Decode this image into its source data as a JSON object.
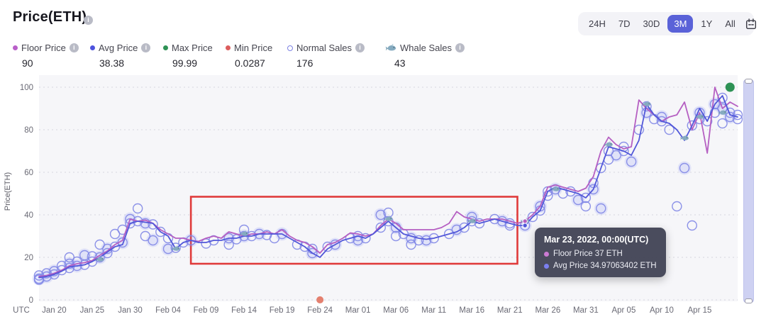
{
  "header": {
    "title": "Price(ETH)"
  },
  "ranges": {
    "options": [
      "24H",
      "7D",
      "30D",
      "3M",
      "1Y",
      "All"
    ],
    "active": "3M"
  },
  "icons": {
    "calendar": "calendar-icon",
    "info": "info-icon",
    "whale": "whale-icon"
  },
  "legend": [
    {
      "label": "Floor Price",
      "value": "90",
      "color": "#b95fc9",
      "type": "dot",
      "info": true
    },
    {
      "label": "Avg Price",
      "value": "38.38",
      "color": "#4d53dd",
      "type": "dot",
      "info": true
    },
    {
      "label": "Max Price",
      "value": "99.99",
      "color": "#2e9255",
      "type": "dot",
      "info": false
    },
    {
      "label": "Min Price",
      "value": "0.0287",
      "color": "#dc5d5d",
      "type": "dot",
      "info": false
    },
    {
      "label": "Normal Sales",
      "value": "176",
      "color": "#7d82e3",
      "type": "ring",
      "info": true
    },
    {
      "label": "Whale Sales",
      "value": "43",
      "color": "#86abc0",
      "type": "whale",
      "info": true
    }
  ],
  "tooltip": {
    "title": "Mar 23, 2022, 00:00(UTC)",
    "rows": [
      {
        "label": "Floor Price",
        "value": "37 ETH",
        "color": "#cb7ad2"
      },
      {
        "label": "Avg Price",
        "value": "34.97063402 ETH",
        "color": "#7b7ff0"
      }
    ]
  },
  "chart_data": {
    "type": "line",
    "title": "Price(ETH)",
    "ylabel": "Price(ETH)",
    "ylim": [
      0,
      100
    ],
    "y_ticks": [
      0,
      20,
      40,
      60,
      80,
      100
    ],
    "grid": "horizontal-dotted",
    "x_axis_prefix": "UTC",
    "x_ticks": [
      "Jan 20",
      "Jan 25",
      "Jan 30",
      "Feb 04",
      "Feb 09",
      "Feb 14",
      "Feb 19",
      "Feb 24",
      "Mar 01",
      "Mar 06",
      "Mar 11",
      "Mar 16",
      "Mar 21",
      "Mar 26",
      "Mar 31",
      "Apr 05",
      "Apr 10",
      "Apr 15"
    ],
    "dates": [
      "Jan 18",
      "Jan 19",
      "Jan 20",
      "Jan 21",
      "Jan 22",
      "Jan 23",
      "Jan 24",
      "Jan 25",
      "Jan 26",
      "Jan 27",
      "Jan 28",
      "Jan 29",
      "Jan 30",
      "Jan 31",
      "Feb 01",
      "Feb 02",
      "Feb 03",
      "Feb 04",
      "Feb 05",
      "Feb 06",
      "Feb 07",
      "Feb 08",
      "Feb 09",
      "Feb 10",
      "Feb 11",
      "Feb 12",
      "Feb 13",
      "Feb 14",
      "Feb 15",
      "Feb 16",
      "Feb 17",
      "Feb 18",
      "Feb 19",
      "Feb 20",
      "Feb 21",
      "Feb 22",
      "Feb 23",
      "Feb 24",
      "Feb 25",
      "Feb 26",
      "Feb 27",
      "Feb 28",
      "Mar 01",
      "Mar 02",
      "Mar 03",
      "Mar 04",
      "Mar 05",
      "Mar 06",
      "Mar 07",
      "Mar 08",
      "Mar 09",
      "Mar 10",
      "Mar 11",
      "Mar 12",
      "Mar 13",
      "Mar 14",
      "Mar 15",
      "Mar 16",
      "Mar 17",
      "Mar 18",
      "Mar 19",
      "Mar 20",
      "Mar 21",
      "Mar 22",
      "Mar 23",
      "Mar 24",
      "Mar 25",
      "Mar 26",
      "Mar 27",
      "Mar 28",
      "Mar 29",
      "Mar 30",
      "Mar 31",
      "Apr 01",
      "Apr 02",
      "Apr 03",
      "Apr 04",
      "Apr 05",
      "Apr 06",
      "Apr 07",
      "Apr 08",
      "Apr 09",
      "Apr 10",
      "Apr 11",
      "Apr 12",
      "Apr 13",
      "Apr 14",
      "Apr 15",
      "Apr 16",
      "Apr 17",
      "Apr 18",
      "Apr 19",
      "Apr 20"
    ],
    "series": [
      {
        "name": "Floor Price",
        "color": "#b55fc2",
        "values": [
          11,
          11.5,
          12.5,
          14,
          16,
          17,
          17.5,
          18.5,
          21,
          23,
          26,
          28,
          38,
          37,
          37.5,
          36,
          33,
          31,
          29,
          29,
          28,
          27.5,
          29,
          30,
          29,
          32,
          31,
          30,
          31,
          31,
          32,
          31,
          33,
          30,
          28,
          27,
          25,
          22,
          26,
          27,
          29,
          31.5,
          31,
          30,
          31,
          35,
          38,
          36,
          33,
          33,
          33,
          33,
          33,
          34,
          36,
          41.5,
          39,
          38,
          37,
          38,
          38,
          38,
          37,
          36,
          37,
          40,
          44,
          53,
          54,
          53,
          52,
          51,
          52.5,
          58,
          70,
          76.5,
          73,
          71,
          72,
          94,
          90,
          87,
          84,
          86,
          87,
          93,
          80,
          88,
          69,
          100,
          90,
          93,
          91
        ]
      },
      {
        "name": "Avg Price",
        "color": "#5157d9",
        "values": [
          10.5,
          11,
          12,
          13.5,
          15.5,
          16,
          16.5,
          18,
          20,
          22.5,
          25,
          26,
          36,
          37,
          36.5,
          36,
          32,
          30,
          24,
          27,
          28,
          27,
          27,
          28,
          28,
          29,
          29,
          30,
          30,
          31,
          31,
          31,
          31,
          29,
          27,
          25,
          22,
          20,
          24,
          26,
          28,
          29,
          30,
          29,
          31,
          34,
          37,
          34,
          31,
          30,
          29,
          28.5,
          29,
          30,
          31,
          32,
          34,
          37,
          36,
          37,
          38,
          37,
          36,
          35,
          34.97,
          39,
          42,
          51,
          53,
          52,
          51,
          50,
          48,
          52,
          62,
          72,
          71,
          70,
          68,
          75,
          92,
          87,
          84,
          83,
          80,
          75,
          82,
          90,
          84,
          92,
          96,
          87,
          86
        ]
      }
    ],
    "normal_sales_points": [
      [
        "Jan 18",
        10
      ],
      [
        "Jan 18",
        11.5
      ],
      [
        "Jan 18",
        9.5
      ],
      [
        "Jan 19",
        11
      ],
      [
        "Jan 19",
        12.5
      ],
      [
        "Jan 20",
        12
      ],
      [
        "Jan 20",
        13.5
      ],
      [
        "Jan 21",
        14
      ],
      [
        "Jan 21",
        16
      ],
      [
        "Jan 22",
        17
      ],
      [
        "Jan 22",
        15
      ],
      [
        "Jan 22",
        20
      ],
      [
        "Jan 23",
        16
      ],
      [
        "Jan 23",
        18
      ],
      [
        "Jan 24",
        16.5
      ],
      [
        "Jan 24",
        21
      ],
      [
        "Jan 25",
        18
      ],
      [
        "Jan 25",
        20.5
      ],
      [
        "Jan 26",
        20
      ],
      [
        "Jan 26",
        26
      ],
      [
        "Jan 27",
        22
      ],
      [
        "Jan 27",
        24
      ],
      [
        "Jan 28",
        25
      ],
      [
        "Jan 28",
        31
      ],
      [
        "Jan 29",
        27
      ],
      [
        "Jan 29",
        33
      ],
      [
        "Jan 30",
        36
      ],
      [
        "Jan 30",
        38
      ],
      [
        "Jan 31",
        37
      ],
      [
        "Jan 31",
        43
      ],
      [
        "Feb 01",
        36
      ],
      [
        "Feb 01",
        30
      ],
      [
        "Feb 02",
        35.5
      ],
      [
        "Feb 02",
        28
      ],
      [
        "Feb 03",
        32
      ],
      [
        "Feb 04",
        29
      ],
      [
        "Feb 04",
        24
      ],
      [
        "Feb 05",
        24.5
      ],
      [
        "Feb 06",
        27
      ],
      [
        "Feb 07",
        28
      ],
      [
        "Feb 09",
        26.5
      ],
      [
        "Feb 10",
        28
      ],
      [
        "Feb 12",
        29
      ],
      [
        "Feb 12",
        26
      ],
      [
        "Feb 13",
        28.5
      ],
      [
        "Feb 14",
        30
      ],
      [
        "Feb 14",
        33
      ],
      [
        "Feb 15",
        30
      ],
      [
        "Feb 16",
        31
      ],
      [
        "Feb 17",
        30.5
      ],
      [
        "Feb 18",
        29
      ],
      [
        "Feb 19",
        31
      ],
      [
        "Feb 21",
        26
      ],
      [
        "Feb 22",
        25
      ],
      [
        "Feb 23",
        22
      ],
      [
        "Feb 23",
        24
      ],
      [
        "Feb 25",
        25
      ],
      [
        "Feb 26",
        26
      ],
      [
        "Feb 28",
        29
      ],
      [
        "Mar 01",
        30
      ],
      [
        "Mar 01",
        28
      ],
      [
        "Mar 02",
        29
      ],
      [
        "Mar 04",
        34
      ],
      [
        "Mar 04",
        40
      ],
      [
        "Mar 05",
        37
      ],
      [
        "Mar 05",
        41
      ],
      [
        "Mar 06",
        34
      ],
      [
        "Mar 06",
        30
      ],
      [
        "Mar 07",
        31
      ],
      [
        "Mar 08",
        29
      ],
      [
        "Mar 08",
        26
      ],
      [
        "Mar 09",
        28
      ],
      [
        "Mar 10",
        28
      ],
      [
        "Mar 11",
        29
      ],
      [
        "Mar 13",
        31
      ],
      [
        "Mar 14",
        33
      ],
      [
        "Mar 15",
        34
      ],
      [
        "Mar 16",
        37
      ],
      [
        "Mar 16",
        39
      ],
      [
        "Mar 17",
        36
      ],
      [
        "Mar 19",
        38
      ],
      [
        "Mar 20",
        37
      ],
      [
        "Mar 21",
        36
      ],
      [
        "Mar 21",
        35
      ],
      [
        "Mar 23",
        35
      ],
      [
        "Mar 24",
        39
      ],
      [
        "Mar 25",
        42
      ],
      [
        "Mar 25",
        44
      ],
      [
        "Mar 26",
        51
      ],
      [
        "Mar 26",
        49
      ],
      [
        "Mar 27",
        52
      ],
      [
        "Mar 28",
        50
      ],
      [
        "Mar 29",
        51
      ],
      [
        "Mar 30",
        47
      ],
      [
        "Mar 31",
        48
      ],
      [
        "Mar 31",
        44
      ],
      [
        "Apr 01",
        52
      ],
      [
        "Apr 01",
        55
      ],
      [
        "Apr 02",
        62
      ],
      [
        "Apr 02",
        43
      ],
      [
        "Apr 03",
        70
      ],
      [
        "Apr 03",
        66
      ],
      [
        "Apr 04",
        68
      ],
      [
        "Apr 05",
        70
      ],
      [
        "Apr 05",
        72
      ],
      [
        "Apr 06",
        65
      ],
      [
        "Apr 07",
        80
      ],
      [
        "Apr 08",
        91
      ],
      [
        "Apr 08",
        88
      ],
      [
        "Apr 09",
        85
      ],
      [
        "Apr 10",
        84
      ],
      [
        "Apr 10",
        86
      ],
      [
        "Apr 11",
        80
      ],
      [
        "Apr 12",
        44
      ],
      [
        "Apr 13",
        62
      ],
      [
        "Apr 14",
        82
      ],
      [
        "Apr 14",
        35
      ],
      [
        "Apr 15",
        88
      ],
      [
        "Apr 15",
        85
      ],
      [
        "Apr 16",
        84
      ],
      [
        "Apr 17",
        92
      ],
      [
        "Apr 17",
        88
      ],
      [
        "Apr 18",
        95
      ],
      [
        "Apr 18",
        90
      ],
      [
        "Apr 18",
        83
      ],
      [
        "Apr 19",
        88
      ],
      [
        "Apr 19",
        86
      ],
      [
        "Apr 20",
        87
      ],
      [
        "Apr 20",
        85
      ]
    ],
    "whale_sales_points": [
      [
        "Jan 26",
        19
      ],
      [
        "Feb 05",
        24
      ],
      [
        "Feb 14",
        31
      ],
      [
        "Mar 05",
        38
      ],
      [
        "Mar 16",
        37
      ],
      [
        "Mar 23",
        37
      ],
      [
        "Mar 27",
        52
      ],
      [
        "Apr 03",
        73
      ],
      [
        "Apr 08",
        92
      ],
      [
        "Apr 13",
        76
      ],
      [
        "Apr 15",
        86
      ],
      [
        "Apr 18",
        88
      ]
    ],
    "markers": {
      "max": {
        "date": "Apr 19",
        "value": 99.99,
        "color": "#2e9255"
      },
      "min": {
        "date": "Feb 24",
        "value": 0.0287,
        "color": "#e4806f"
      }
    },
    "active_point": {
      "date": "Mar 23",
      "floor": 37,
      "avg": 34.97
    },
    "annotation_box": {
      "x1": "Feb 07",
      "x2": "Mar 22",
      "y1": 17,
      "y2": 48.5,
      "color": "#e03b3b"
    },
    "legend_position": "top-left"
  }
}
